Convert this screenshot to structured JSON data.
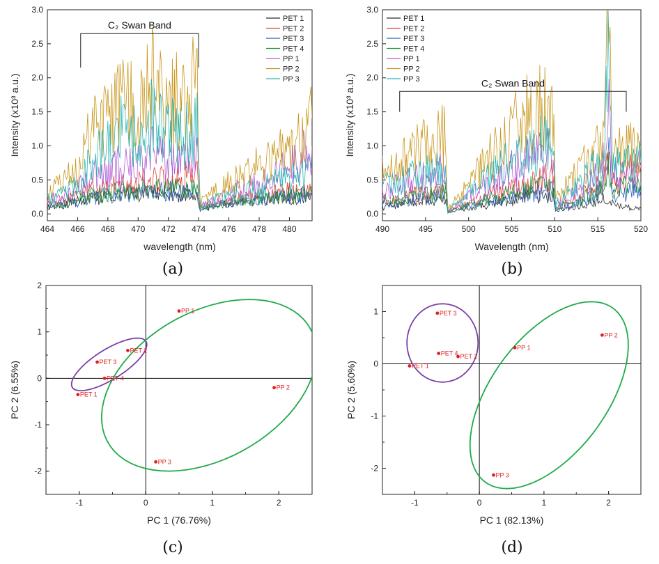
{
  "chart_data": [
    {
      "type": "line",
      "panel": "(a)",
      "xlabel": "wavelength (nm)",
      "ylabel": "Intensity (x10³ a.u.)",
      "xlim": [
        464,
        481.5
      ],
      "ylim": [
        -0.1,
        3.0
      ],
      "xticks": [
        "464",
        "466",
        "468",
        "470",
        "472",
        "474",
        "476",
        "478",
        "480"
      ],
      "yticks": [
        "0.0",
        "0.5",
        "1.0",
        "1.5",
        "2.0",
        "2.5",
        "3.0"
      ],
      "legend_position": "top-right",
      "annotation": {
        "text": "C₂ Swan Band",
        "x_start": 466.2,
        "x_end": 474.0,
        "y_top": 2.65,
        "y_bottom": 2.15
      },
      "x": [
        464,
        465,
        466,
        467,
        468,
        469,
        470,
        471,
        472,
        473,
        473.9,
        474.1,
        475,
        476,
        477,
        478,
        479,
        480,
        481,
        481.5
      ],
      "series": [
        {
          "name": "PET 1",
          "color": "#2b2b2b",
          "values": [
            0.1,
            0.12,
            0.18,
            0.22,
            0.25,
            0.28,
            0.27,
            0.3,
            0.31,
            0.3,
            0.32,
            0.05,
            0.1,
            0.15,
            0.18,
            0.2,
            0.22,
            0.24,
            0.25,
            0.26
          ]
        },
        {
          "name": "PET 2",
          "color": "#e0413a",
          "values": [
            0.15,
            0.2,
            0.25,
            0.35,
            0.38,
            0.42,
            0.45,
            0.5,
            0.52,
            0.55,
            0.58,
            0.1,
            0.15,
            0.2,
            0.25,
            0.28,
            0.3,
            0.33,
            0.35,
            0.38
          ]
        },
        {
          "name": "PET 3",
          "color": "#2a5fc8",
          "values": [
            0.1,
            0.14,
            0.18,
            0.24,
            0.27,
            0.3,
            0.31,
            0.33,
            0.34,
            0.33,
            0.35,
            0.06,
            0.12,
            0.16,
            0.19,
            0.22,
            0.24,
            0.26,
            0.27,
            0.28
          ]
        },
        {
          "name": "PET 4",
          "color": "#1f8f3a",
          "values": [
            0.12,
            0.15,
            0.22,
            0.28,
            0.3,
            0.35,
            0.36,
            0.4,
            0.38,
            0.4,
            0.42,
            0.08,
            0.12,
            0.18,
            0.2,
            0.22,
            0.25,
            0.28,
            0.3,
            0.3
          ]
        },
        {
          "name": "PP 1",
          "color": "#b05ad0",
          "values": [
            0.2,
            0.25,
            0.35,
            0.55,
            0.6,
            0.75,
            0.7,
            0.9,
            0.85,
            0.8,
            0.88,
            0.12,
            0.2,
            0.3,
            0.4,
            0.45,
            0.55,
            0.7,
            0.9,
            1.0
          ]
        },
        {
          "name": "PP 2",
          "color": "#c9961a",
          "values": [
            0.3,
            0.45,
            0.7,
            1.2,
            1.35,
            1.75,
            1.5,
            1.95,
            1.7,
            1.6,
            2.1,
            0.2,
            0.3,
            0.45,
            0.6,
            0.7,
            0.85,
            0.95,
            1.1,
            1.4
          ]
        },
        {
          "name": "PP 3",
          "color": "#2ab5b5",
          "values": [
            0.22,
            0.3,
            0.45,
            0.85,
            0.95,
            1.25,
            1.1,
            1.45,
            1.2,
            1.1,
            1.3,
            0.12,
            0.2,
            0.28,
            0.35,
            0.38,
            0.45,
            0.55,
            0.6,
            0.65
          ]
        }
      ]
    },
    {
      "type": "line",
      "panel": "(b)",
      "xlabel": "Wavelength (nm)",
      "ylabel": "Intensity (x10³ a.u.)",
      "xlim": [
        490,
        520
      ],
      "ylim": [
        -0.1,
        3.0
      ],
      "xticks": [
        "490",
        "495",
        "500",
        "505",
        "510",
        "515",
        "520"
      ],
      "yticks": [
        "0.0",
        "0.5",
        "1.0",
        "1.5",
        "2.0",
        "2.5",
        "3.0"
      ],
      "legend_position": "top-left",
      "annotation": {
        "text": "C₂ Swan Band",
        "x_start": 492.0,
        "x_end": 518.3,
        "y_top": 1.8,
        "y_bottom": 1.5
      },
      "x": [
        490,
        491.5,
        493,
        494.5,
        496,
        497.3,
        497.6,
        499,
        501,
        503,
        505,
        507,
        508.5,
        509.8,
        510.1,
        512,
        514,
        515.5,
        516.3,
        516.7,
        518,
        520
      ],
      "series": [
        {
          "name": "PET 1",
          "color": "#2b2b2b",
          "values": [
            0.1,
            0.12,
            0.15,
            0.18,
            0.2,
            0.22,
            0.02,
            0.05,
            0.1,
            0.15,
            0.2,
            0.25,
            0.25,
            0.28,
            0.05,
            0.1,
            0.15,
            0.2,
            0.25,
            0.15,
            0.1,
            0.08
          ]
        },
        {
          "name": "PET 2",
          "color": "#e0413a",
          "values": [
            0.2,
            0.22,
            0.28,
            0.3,
            0.32,
            0.35,
            0.05,
            0.1,
            0.2,
            0.3,
            0.4,
            0.45,
            0.5,
            0.55,
            0.1,
            0.2,
            0.35,
            0.45,
            0.9,
            0.5,
            0.55,
            0.7
          ]
        },
        {
          "name": "PET 3",
          "color": "#2a5fc8",
          "values": [
            0.15,
            0.16,
            0.2,
            0.22,
            0.25,
            0.28,
            0.03,
            0.08,
            0.15,
            0.2,
            0.25,
            0.3,
            0.32,
            0.35,
            0.06,
            0.15,
            0.25,
            0.35,
            0.8,
            0.3,
            0.3,
            0.35
          ]
        },
        {
          "name": "PET 4",
          "color": "#1f8f3a",
          "values": [
            0.18,
            0.2,
            0.25,
            0.28,
            0.3,
            0.32,
            0.04,
            0.08,
            0.18,
            0.25,
            0.32,
            0.38,
            0.4,
            0.42,
            0.08,
            0.18,
            0.28,
            0.38,
            0.85,
            0.35,
            0.4,
            0.45
          ]
        },
        {
          "name": "PP 1",
          "color": "#b05ad0",
          "values": [
            0.35,
            0.4,
            0.5,
            0.55,
            0.6,
            0.65,
            0.05,
            0.15,
            0.35,
            0.5,
            0.65,
            0.8,
            0.85,
            0.9,
            0.12,
            0.3,
            0.5,
            0.7,
            1.4,
            0.6,
            0.6,
            0.7
          ]
        },
        {
          "name": "PP 2",
          "color": "#c9961a",
          "values": [
            0.6,
            0.65,
            0.9,
            1.0,
            1.1,
            1.2,
            0.08,
            0.25,
            0.6,
            0.9,
            1.2,
            1.45,
            1.55,
            1.5,
            0.2,
            0.5,
            0.8,
            1.1,
            2.7,
            0.9,
            0.9,
            1.0
          ]
        },
        {
          "name": "PP 3",
          "color": "#2ab5b5",
          "values": [
            0.4,
            0.45,
            0.55,
            0.6,
            0.65,
            0.7,
            0.06,
            0.18,
            0.4,
            0.6,
            0.8,
            0.95,
            1.0,
            1.0,
            0.15,
            0.35,
            0.6,
            0.9,
            2.4,
            0.7,
            0.7,
            0.75
          ]
        }
      ]
    },
    {
      "type": "scatter",
      "panel": "(c)",
      "xlabel": "PC 1 (76.76%)",
      "ylabel": "PC 2 (6.55%)",
      "xlim": [
        -1.5,
        2.5
      ],
      "ylim": [
        -2.5,
        2.0
      ],
      "xticks": [
        "-1",
        "0",
        "1",
        "2"
      ],
      "yticks": [
        "-2",
        "-1",
        "0",
        "1",
        "2"
      ],
      "tick_values_x": [
        -1,
        0,
        1,
        2
      ],
      "tick_values_y": [
        -2,
        -1,
        0,
        1,
        2
      ],
      "points": [
        {
          "label": "PET 1",
          "x": -1.02,
          "y": -0.35
        },
        {
          "label": "PET 2",
          "x": -0.27,
          "y": 0.6
        },
        {
          "label": "PET 3",
          "x": -0.73,
          "y": 0.35
        },
        {
          "label": "PET 4",
          "x": -0.62,
          "y": 0.0
        },
        {
          "label": "PP 1",
          "x": 0.5,
          "y": 1.45
        },
        {
          "label": "PP 2",
          "x": 1.93,
          "y": -0.2
        },
        {
          "label": "PP 3",
          "x": 0.15,
          "y": -1.8
        }
      ],
      "ellipses": [
        {
          "color": "#7a3fa8",
          "cx": -0.55,
          "cy": 0.3,
          "rx": 0.75,
          "ry": 0.28,
          "angle_deg": 45
        },
        {
          "color": "#1faa4a",
          "cx": 0.95,
          "cy": -0.15,
          "rx": 2.05,
          "ry": 1.35,
          "angle_deg": 55
        }
      ]
    },
    {
      "type": "scatter",
      "panel": "(d)",
      "xlabel": "PC 1 (82.13%)",
      "ylabel": "PC 2 (5.60%)",
      "xlim": [
        -1.5,
        2.5
      ],
      "ylim": [
        -2.5,
        1.5
      ],
      "xticks": [
        "-1",
        "0",
        "1",
        "2"
      ],
      "yticks": [
        "-2",
        "-1",
        "0",
        "1"
      ],
      "tick_values_x": [
        -1,
        0,
        1,
        2
      ],
      "tick_values_y": [
        -2,
        -1,
        0,
        1
      ],
      "points": [
        {
          "label": "PET 1",
          "x": -1.08,
          "y": -0.04
        },
        {
          "label": "PET 2",
          "x": -0.33,
          "y": 0.14
        },
        {
          "label": "PET 3",
          "x": -0.65,
          "y": 0.97
        },
        {
          "label": "PET 4",
          "x": -0.63,
          "y": 0.2
        },
        {
          "label": "PP 1",
          "x": 0.55,
          "y": 0.31
        },
        {
          "label": "PP 2",
          "x": 1.9,
          "y": 0.55
        },
        {
          "label": "PP 3",
          "x": 0.22,
          "y": -2.13
        }
      ],
      "ellipses": [
        {
          "color": "#7a3fa8",
          "cx": -0.57,
          "cy": 0.4,
          "rx": 0.55,
          "ry": 0.75,
          "angle_deg": 0
        },
        {
          "color": "#1faa4a",
          "cx": 1.08,
          "cy": -0.6,
          "rx": 1.95,
          "ry": 0.95,
          "angle_deg": 63
        }
      ]
    }
  ],
  "captions": [
    "(a)",
    "(b)",
    "(c)",
    "(d)"
  ]
}
